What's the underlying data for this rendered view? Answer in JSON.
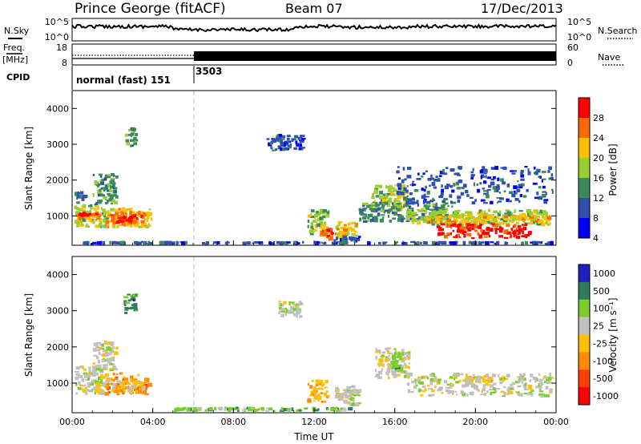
{
  "header": {
    "station": "Prince George (fitACF)",
    "beam": "Beam 07",
    "date": "17/Dec/2013"
  },
  "noise_panel": {
    "left_label": "N.Sky",
    "right_label": "N.Search",
    "left_ticks": [
      "10^5",
      "10^0"
    ],
    "right_ticks": [
      "10^5",
      "10^0"
    ]
  },
  "freq_panel": {
    "left_label": "Freq.",
    "left_unit": "[MHz]",
    "left_ticks": [
      "18",
      "8"
    ],
    "right_label": "Nave",
    "right_ticks": [
      "60",
      "0"
    ]
  },
  "cpid_panel": {
    "label": "CPID",
    "segments": [
      {
        "name": "normal (fast) 151",
        "start_hour": 0,
        "end_hour": 6
      },
      {
        "name": "3503",
        "start_hour": 6,
        "end_hour": 24
      }
    ]
  },
  "chart_data": [
    {
      "type": "heatmap",
      "parameter": "Power",
      "ylabel": "Slant Range [km]",
      "colorbar_label": "Power [dB]",
      "colorbar_ticks": [
        "28",
        "24",
        "20",
        "16",
        "12",
        "8",
        "4"
      ],
      "colorbar_colors": [
        "#ff0000",
        "#ff6a00",
        "#ffc000",
        "#9acd32",
        "#3a8a5a",
        "#3050b0",
        "#0000ff"
      ],
      "x_ticks": [
        "00:00",
        "04:00",
        "08:00",
        "12:00",
        "16:00",
        "20:00",
        "00:00"
      ],
      "xlim_hours": [
        0,
        24
      ],
      "y_ticks": [
        "1000",
        "2000",
        "3000",
        "4000"
      ],
      "ylim_km": [
        180,
        4500
      ],
      "patches": [
        {
          "t0": 0.1,
          "t1": 1.9,
          "r0": 650,
          "r1": 1350,
          "level": 3
        },
        {
          "t0": 0.2,
          "t1": 1.5,
          "r0": 850,
          "r1": 1150,
          "level": 5
        },
        {
          "t0": 0.3,
          "t1": 1.4,
          "r0": 950,
          "r1": 1120,
          "level": 6
        },
        {
          "t0": 1.6,
          "t1": 4.0,
          "r0": 650,
          "r1": 1250,
          "level": 4
        },
        {
          "t0": 1.9,
          "t1": 3.6,
          "r0": 750,
          "r1": 1150,
          "level": 5
        },
        {
          "t0": 2.2,
          "t1": 3.3,
          "r0": 800,
          "r1": 1050,
          "level": 6
        },
        {
          "t0": 0.1,
          "t1": 0.8,
          "r0": 1300,
          "r1": 1700,
          "level": 1
        },
        {
          "t0": 1.0,
          "t1": 2.3,
          "r0": 1300,
          "r1": 2200,
          "level": 2
        },
        {
          "t0": 2.6,
          "t1": 3.3,
          "r0": 2900,
          "r1": 3500,
          "level": 2
        },
        {
          "t0": 9.6,
          "t1": 11.6,
          "r0": 2800,
          "r1": 3300,
          "level": 1
        },
        {
          "t0": 11.6,
          "t1": 12.8,
          "r0": 450,
          "r1": 1200,
          "level": 3
        },
        {
          "t0": 12.2,
          "t1": 13.0,
          "r0": 300,
          "r1": 700,
          "level": 5
        },
        {
          "t0": 13.0,
          "t1": 14.2,
          "r0": 350,
          "r1": 900,
          "level": 4
        },
        {
          "t0": 12.8,
          "t1": 14.4,
          "r0": 250,
          "r1": 450,
          "level": 1
        },
        {
          "t0": 14.8,
          "t1": 16.8,
          "r0": 1100,
          "r1": 1900,
          "level": 3
        },
        {
          "t0": 14.2,
          "t1": 19.0,
          "r0": 800,
          "r1": 1400,
          "level": 2
        },
        {
          "t0": 16.5,
          "t1": 23.8,
          "r0": 700,
          "r1": 1200,
          "level": 3
        },
        {
          "t0": 17.5,
          "t1": 23.8,
          "r0": 750,
          "r1": 1050,
          "level": 4
        },
        {
          "t0": 18.0,
          "t1": 22.8,
          "r0": 350,
          "r1": 800,
          "level": 6
        },
        {
          "t0": 16.0,
          "t1": 23.9,
          "r0": 1300,
          "r1": 2400,
          "level": 1
        },
        {
          "t0": 0.5,
          "t1": 24.0,
          "r0": 190,
          "r1": 300,
          "level": 1
        }
      ]
    },
    {
      "type": "heatmap",
      "parameter": "Velocity",
      "ylabel": "Slant Range [km]",
      "colorbar_label": "Velocity [m s⁻¹]",
      "colorbar_ticks": [
        "1000",
        "500",
        "100",
        "25",
        "-25",
        "-100",
        "-500",
        "-1000"
      ],
      "colorbar_colors": [
        "#2020c0",
        "#2e7d5e",
        "#7ccd2c",
        "#c0c0c0",
        "#ffc000",
        "#ff8c00",
        "#ff4000",
        "#ff0000"
      ],
      "x_ticks": [
        "00:00",
        "04:00",
        "08:00",
        "12:00",
        "16:00",
        "20:00",
        "00:00"
      ],
      "xlim_hours": [
        0,
        24
      ],
      "y_ticks": [
        "1000",
        "2000",
        "3000",
        "4000"
      ],
      "ylim_km": [
        180,
        4500
      ],
      "xlabel": "Time UT",
      "patches": [
        {
          "t0": 0.1,
          "t1": 1.9,
          "r0": 650,
          "r1": 1500,
          "level": 3
        },
        {
          "t0": 1.0,
          "t1": 2.3,
          "r0": 1300,
          "r1": 2200,
          "level": 3
        },
        {
          "t0": 1.6,
          "t1": 4.0,
          "r0": 650,
          "r1": 1300,
          "level": 5
        },
        {
          "t0": 1.9,
          "t1": 3.7,
          "r0": 700,
          "r1": 1100,
          "level": 4
        },
        {
          "t0": 2.5,
          "t1": 3.3,
          "r0": 2900,
          "r1": 3500,
          "level": 1
        },
        {
          "t0": 10.2,
          "t1": 11.5,
          "r0": 2800,
          "r1": 3300,
          "level": 3
        },
        {
          "t0": 11.6,
          "t1": 12.8,
          "r0": 450,
          "r1": 1100,
          "level": 4
        },
        {
          "t0": 5.0,
          "t1": 14.0,
          "r0": 200,
          "r1": 350,
          "level": 2
        },
        {
          "t0": 13.0,
          "t1": 14.4,
          "r0": 350,
          "r1": 950,
          "level": 3
        },
        {
          "t0": 15.0,
          "t1": 16.8,
          "r0": 1100,
          "r1": 2000,
          "level": 3
        },
        {
          "t0": 15.8,
          "t1": 16.6,
          "r0": 1300,
          "r1": 1900,
          "level": 2
        },
        {
          "t0": 16.6,
          "t1": 23.9,
          "r0": 600,
          "r1": 1300,
          "level": 3
        },
        {
          "t0": 19.2,
          "t1": 21.5,
          "r0": 1000,
          "r1": 1200,
          "level": 4
        }
      ]
    }
  ]
}
